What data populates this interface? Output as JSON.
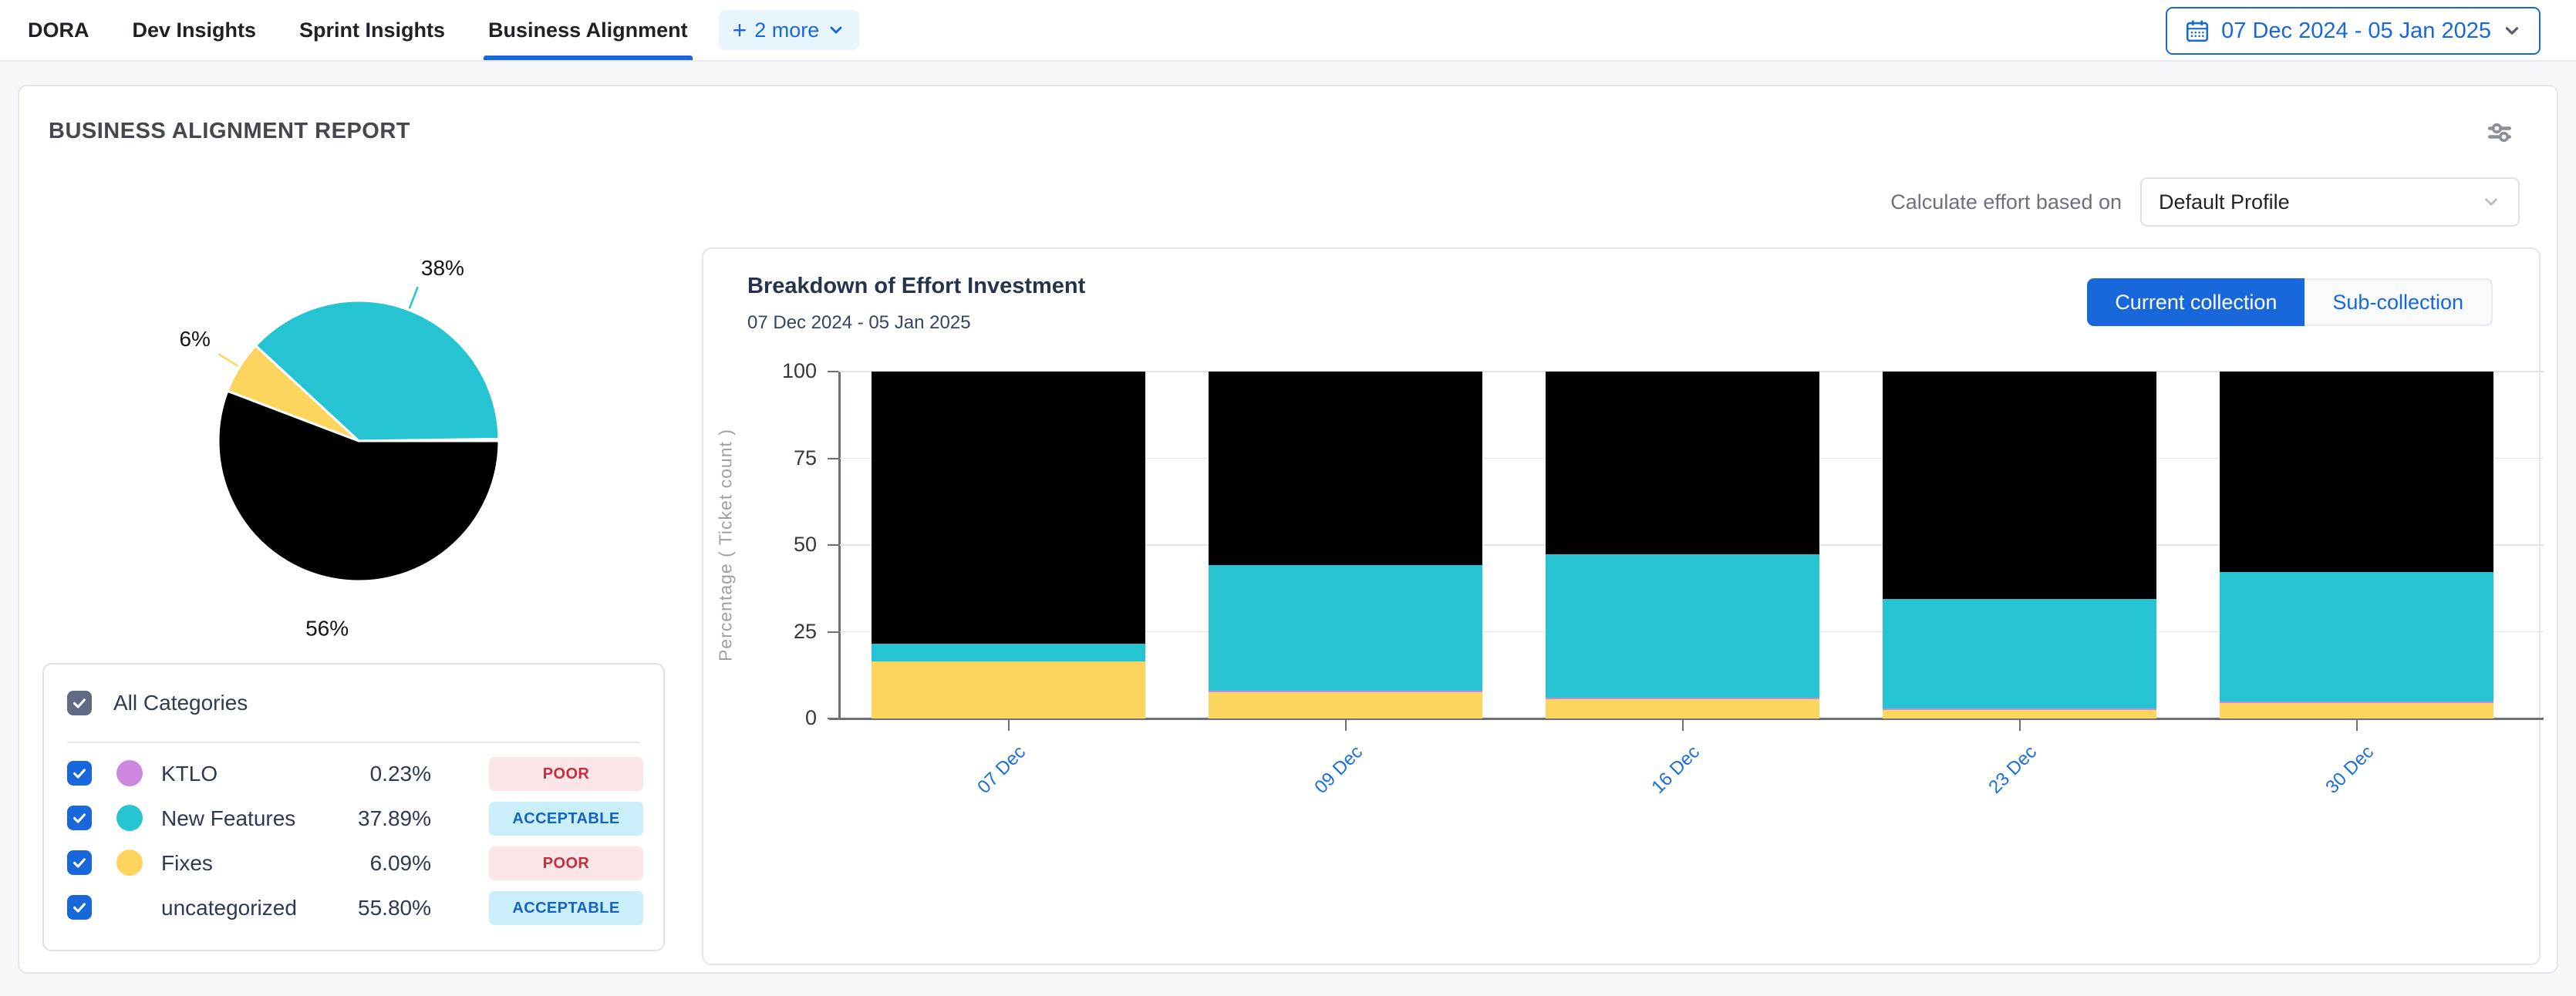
{
  "nav": {
    "tabs": [
      {
        "label": "DORA",
        "active": false
      },
      {
        "label": "Dev Insights",
        "active": false
      },
      {
        "label": "Sprint Insights",
        "active": false
      },
      {
        "label": "Business Alignment",
        "active": true
      }
    ],
    "more_label": "2 more",
    "date_range": "07 Dec 2024 - 05 Jan 2025"
  },
  "report": {
    "title": "BUSINESS ALIGNMENT REPORT",
    "effort_label": "Calculate effort based on",
    "profile_value": "Default Profile"
  },
  "categories_panel": {
    "all_label": "All Categories",
    "rows": [
      {
        "name": "KTLO",
        "value": "0.23%",
        "status": "POOR",
        "status_type": "poor",
        "dot_color": "#cd87de"
      },
      {
        "name": "New Features",
        "value": "37.89%",
        "status": "ACCEPTABLE",
        "status_type": "acceptable",
        "dot_color": "#26c3d2"
      },
      {
        "name": "Fixes",
        "value": "6.09%",
        "status": "POOR",
        "status_type": "poor",
        "dot_color": "#fcd55f"
      },
      {
        "name": "uncategorized",
        "value": "55.80%",
        "status": "ACCEPTABLE",
        "status_type": "acceptable",
        "dot_color": null
      }
    ]
  },
  "breakdown": {
    "title": "Breakdown of Effort Investment",
    "subtitle": "07 Dec 2024 - 05 Jan 2025",
    "buttons": [
      {
        "label": "Current collection",
        "active": true
      },
      {
        "label": "Sub-collection",
        "active": false
      }
    ]
  },
  "colors": {
    "accent": "#1868db",
    "cyan": "#26c3d2",
    "yellow": "#fcd55f",
    "purple": "#cd87de",
    "black": "#000000",
    "poor_bg": "#fbe5e7",
    "poor_text": "#c2303f",
    "acceptable_bg": "#cbeefb",
    "acceptable_text": "#1464c4"
  },
  "chart_data": [
    {
      "type": "pie",
      "start_angle": 0,
      "direction": "counterclockwise",
      "slices": [
        {
          "name": "KTLO",
          "value": 0.23,
          "color": "#cd87de",
          "label": "",
          "leader": false
        },
        {
          "name": "New Features",
          "value": 37.89,
          "color": "#26c3d2",
          "label": "38%",
          "leader": true
        },
        {
          "name": "Fixes",
          "value": 6.09,
          "color": "#fcd55f",
          "label": "6%",
          "leader": true
        },
        {
          "name": "uncategorized",
          "value": 55.8,
          "color": "#000000",
          "label": "56%",
          "leader": false
        }
      ]
    },
    {
      "type": "bar",
      "stacked": true,
      "categories": [
        "07 Dec",
        "09 Dec",
        "16 Dec",
        "23 Dec",
        "30 Dec"
      ],
      "series": [
        {
          "name": "Fixes",
          "color": "#fcd55f",
          "values": [
            16.5,
            7.5,
            5.5,
            2.5,
            4.5
          ]
        },
        {
          "name": "KTLO",
          "color": "#cd87de",
          "values": [
            0,
            0.4,
            0.4,
            0.5,
            0.4
          ]
        },
        {
          "name": "New Features",
          "color": "#26c3d2",
          "values": [
            5,
            36.4,
            41.4,
            31.5,
            37.4
          ]
        },
        {
          "name": "uncategorized",
          "color": "#000000",
          "values": [
            78.5,
            55.7,
            52.7,
            65.5,
            57.7
          ]
        }
      ],
      "ylabel": "Percentage ( Ticket count )",
      "yticks": [
        0,
        25,
        50,
        75,
        100
      ],
      "ylim": [
        0,
        100
      ],
      "grid": true,
      "legend_position": "none"
    }
  ]
}
